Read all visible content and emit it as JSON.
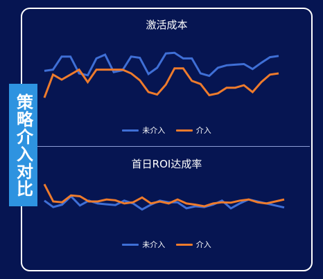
{
  "side_tab": {
    "label": "策略介入对比"
  },
  "colors": {
    "background": "#061552",
    "series_no_intervention": "#3f6fd6",
    "series_intervention": "#ee7b2c",
    "side_tab": "#2e93e0",
    "panel_border": "#ffffff"
  },
  "chart_data": [
    {
      "type": "line",
      "title": "激活成本",
      "xlabel": "",
      "ylabel": "",
      "grid": false,
      "legend": "bottom-center",
      "x": [
        1,
        2,
        3,
        4,
        5,
        6,
        7,
        8,
        9,
        10,
        11,
        12,
        13,
        14,
        15,
        16,
        17,
        18,
        19,
        20,
        21,
        22,
        23,
        24,
        25,
        26,
        27,
        28
      ],
      "ylim": [
        0,
        100
      ],
      "series": [
        {
          "name": "未介入",
          "color": "#3f6fd6",
          "values": [
            64,
            66,
            87,
            87,
            60,
            57,
            84,
            90,
            62,
            65,
            87,
            85,
            59,
            69,
            92,
            93,
            84,
            84,
            60,
            56,
            69,
            73,
            74,
            75,
            67,
            77,
            86,
            88
          ]
        },
        {
          "name": "介入",
          "color": "#ee7b2c",
          "values": [
            21,
            58,
            50,
            58,
            66,
            46,
            66,
            66,
            66,
            66,
            60,
            49,
            30,
            26,
            42,
            68,
            68,
            48,
            43,
            25,
            28,
            37,
            37,
            41,
            30,
            46,
            58,
            60
          ]
        }
      ]
    },
    {
      "type": "line",
      "title": "首日ROI达成率",
      "xlabel": "",
      "ylabel": "",
      "grid": false,
      "legend": "bottom-center",
      "x": [
        1,
        2,
        3,
        4,
        5,
        6,
        7,
        8,
        9,
        10,
        11,
        12,
        13,
        14,
        15,
        16,
        17,
        18,
        19,
        20,
        21,
        22,
        23,
        24,
        25,
        26,
        27,
        28
      ],
      "ylim": [
        0,
        100
      ],
      "series": [
        {
          "name": "未介入",
          "color": "#3f6fd6",
          "values": [
            52,
            36,
            42,
            63,
            40,
            52,
            45,
            43,
            41,
            52,
            45,
            30,
            42,
            52,
            48,
            48,
            33,
            38,
            36,
            42,
            52,
            33,
            45,
            55,
            50,
            45,
            40,
            35
          ]
        },
        {
          "name": "介入",
          "color": "#ee7b2c",
          "values": [
            93,
            50,
            48,
            65,
            63,
            50,
            50,
            55,
            53,
            45,
            48,
            60,
            45,
            50,
            45,
            55,
            45,
            42,
            38,
            45,
            48,
            47,
            52,
            55,
            48,
            45,
            50,
            55
          ]
        }
      ]
    }
  ]
}
